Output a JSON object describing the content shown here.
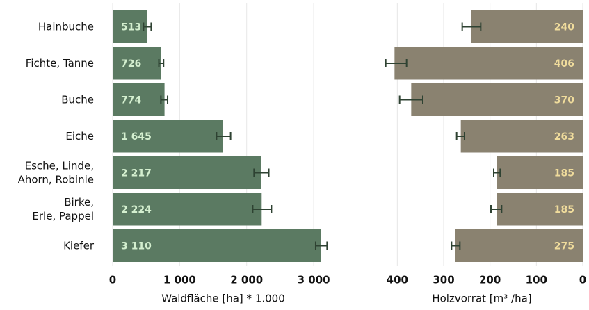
{
  "chart_data": [
    {
      "type": "bar",
      "orientation": "horizontal",
      "categories": [
        "Hainbuche",
        "Fichte, Tanne",
        "Buche",
        "Eiche",
        "Esche, Linde, Ahorn, Robinie",
        "Birke, Erle, Pappel",
        "Kiefer"
      ],
      "category_label_lines": [
        [
          "Hainbuche"
        ],
        [
          "Fichte, Tanne"
        ],
        [
          "Buche"
        ],
        [
          "Eiche"
        ],
        [
          "Esche, Linde,",
          "Ahorn, Robinie"
        ],
        [
          "Birke,",
          "Erle, Pappel"
        ],
        [
          "Kiefer"
        ]
      ],
      "values": [
        513,
        726,
        774,
        1645,
        2217,
        2224,
        3110
      ],
      "value_labels": [
        "513",
        "726",
        "774",
        "1 645",
        "2 217",
        "2 224",
        "3 110"
      ],
      "error_low": [
        460,
        690,
        720,
        1550,
        2110,
        2090,
        3030
      ],
      "error_high": [
        575,
        760,
        820,
        1760,
        2330,
        2370,
        3200
      ],
      "xlim": [
        0,
        3300
      ],
      "ticks": [
        0,
        1000,
        2000,
        3000
      ],
      "tick_labels": [
        "0",
        "1 000",
        "2 000",
        "3 000"
      ],
      "xlabel": "Waldfläche [ha] * 1.000",
      "bar_color": "#5b7a62",
      "label_color": "#d4efcf",
      "grid": true
    },
    {
      "type": "bar",
      "orientation": "horizontal",
      "direction": "right-to-left",
      "categories": [
        "Hainbuche",
        "Fichte, Tanne",
        "Buche",
        "Eiche",
        "Esche, Linde, Ahorn, Robinie",
        "Birke, Erle, Pappel",
        "Kiefer"
      ],
      "values": [
        240,
        406,
        370,
        263,
        185,
        185,
        275
      ],
      "value_labels": [
        "240",
        "406",
        "370",
        "263",
        "185",
        "185",
        "275"
      ],
      "error_low": [
        220,
        380,
        345,
        255,
        178,
        175,
        265
      ],
      "error_high": [
        260,
        425,
        395,
        272,
        192,
        198,
        283
      ],
      "xlim": [
        0,
        435
      ],
      "ticks": [
        400,
        300,
        200,
        100,
        0
      ],
      "tick_labels": [
        "400",
        "300",
        "200",
        "100",
        "0"
      ],
      "xlabel": "Holzvorrat [m³ /ha]",
      "bar_color": "#8a8270",
      "label_color": "#f0dc9c",
      "grid": true
    }
  ]
}
